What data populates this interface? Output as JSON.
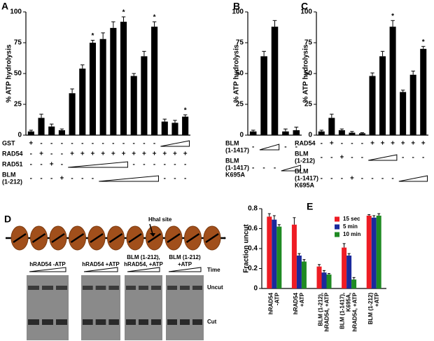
{
  "chart_data": [
    {
      "type": "bar",
      "panel": "A",
      "ylabel": "% ATP hydrolysis",
      "color": "#000000",
      "ylim": [
        0,
        100
      ],
      "yticks": [
        0,
        25,
        50,
        75,
        100
      ],
      "values": [
        3,
        14,
        7,
        4,
        34,
        54,
        75,
        78,
        87,
        92,
        48,
        64,
        88,
        11,
        10,
        15
      ],
      "errors": [
        1,
        3,
        2,
        1,
        3.5,
        3,
        2,
        5,
        5,
        4,
        2,
        4,
        4,
        2,
        2,
        1.5
      ],
      "significance": [
        null,
        null,
        null,
        null,
        null,
        null,
        "*",
        null,
        null,
        "*",
        null,
        null,
        "*",
        null,
        null,
        "*"
      ],
      "conditions": [
        {
          "label": [
            "GST"
          ],
          "signs": [
            "+",
            "-",
            "-",
            "-",
            "-",
            "-",
            "-",
            "-",
            "-",
            "-",
            "-",
            "-",
            "-",
            null,
            null,
            null
          ]
        },
        {
          "label": [
            "RAD54"
          ],
          "signs": [
            "-",
            "+",
            "-",
            "-",
            "+",
            "+",
            "+",
            "+",
            "+",
            "+",
            "+",
            "+",
            "+",
            "+",
            "+",
            "+"
          ]
        },
        {
          "label": [
            "RAD51"
          ],
          "signs": [
            "-",
            "-",
            "+",
            "-",
            null,
            null,
            null,
            null,
            null,
            null,
            "-",
            "-",
            "-",
            "-",
            "-",
            "-"
          ]
        },
        {
          "label": [
            "BLM",
            "(1-212)"
          ],
          "signs": [
            "-",
            "-",
            "-",
            "+",
            "-",
            "-",
            "-",
            null,
            null,
            null,
            null,
            null,
            null,
            "-",
            "-",
            "-"
          ]
        }
      ]
    },
    {
      "type": "bar",
      "panel": "B",
      "ylabel": "% ATP hydrolysis",
      "color": "#000000",
      "ylim": [
        0,
        100
      ],
      "yticks": [
        0,
        25,
        50,
        75,
        100
      ],
      "values": [
        3,
        64,
        88,
        3,
        4
      ],
      "errors": [
        1,
        4,
        5,
        2,
        2.5
      ],
      "conditions": [
        {
          "label": [
            "BLM",
            "(1-1417)"
          ],
          "signs": [
            "-",
            null,
            null,
            "-",
            "-"
          ]
        },
        {
          "label": [
            "BLM",
            "(1-1417)",
            "K695A"
          ],
          "signs": [
            "-",
            "-",
            "-",
            null,
            null
          ]
        }
      ]
    },
    {
      "type": "bar",
      "panel": "C",
      "ylabel": "% ATP hydrolysis",
      "color": "#000000",
      "ylim": [
        0,
        100
      ],
      "yticks": [
        0,
        25,
        50,
        75,
        100
      ],
      "values": [
        3,
        14,
        4,
        2,
        1.5,
        48,
        64,
        88,
        35,
        49,
        70
      ],
      "errors": [
        1,
        3,
        1,
        1,
        0.5,
        2.5,
        4,
        5,
        1.5,
        3,
        2
      ],
      "significance": [
        null,
        null,
        null,
        null,
        null,
        null,
        null,
        "*",
        null,
        null,
        "*"
      ],
      "conditions": [
        {
          "label": [
            "RAD54"
          ],
          "signs": [
            "-",
            "+",
            "-",
            "-",
            "-",
            "+",
            "+",
            "+",
            "+",
            "+",
            "+"
          ]
        },
        {
          "label": [
            "BLM",
            "(1-212)"
          ],
          "signs": [
            "-",
            "-",
            "+",
            "-",
            "-",
            null,
            null,
            null,
            "-",
            "-",
            "-"
          ]
        },
        {
          "label": [
            "BLM",
            "(1-1417)",
            "K695A"
          ],
          "signs": [
            "-",
            "-",
            "-",
            "+",
            "-",
            "-",
            "-",
            "-",
            null,
            null,
            null
          ]
        }
      ]
    },
    {
      "type": "gel",
      "panel": "D",
      "site_label": "HhaI site",
      "time_label": "Time",
      "lanes": [
        {
          "label": [
            "hRAD54 -ATP"
          ]
        },
        {
          "label": [
            "hRAD54 +ATP"
          ]
        },
        {
          "label": [
            "BLM (1-212),",
            "hRAD54, +ATP"
          ]
        },
        {
          "label": [
            "BLM (1-212)",
            "+ATP"
          ]
        }
      ],
      "band_labels": [
        "Uncut",
        "Cut"
      ]
    },
    {
      "type": "grouped_bar",
      "panel": "E",
      "ylabel": "Fraction uncut",
      "ylim": [
        0,
        0.8
      ],
      "yticks": [
        0,
        0.2,
        0.4,
        0.6,
        0.8
      ],
      "categories": [
        [
          "hRAD54",
          "-ATP"
        ],
        [
          "hRAD54",
          "+ATP"
        ],
        [
          "BLM (1-212),",
          "hRAD54, +ATP"
        ],
        [
          "BLM (1-1417),",
          "K695A,",
          "hRAD54, +ATP"
        ],
        [
          "BLM (1-212)",
          "+ATP"
        ]
      ],
      "series": [
        {
          "name": "15 sec",
          "color": "#ee1c24",
          "values": [
            0.72,
            0.64,
            0.22,
            0.41,
            0.73
          ],
          "errors": [
            0.03,
            0.07,
            0.02,
            0.04,
            0.01
          ]
        },
        {
          "name": "5 min",
          "color": "#1a2a9c",
          "values": [
            0.69,
            0.33,
            0.16,
            0.33,
            0.71
          ],
          "errors": [
            0.04,
            0.02,
            0.02,
            0.02,
            0.02
          ]
        },
        {
          "name": "10 min",
          "color": "#1f8a23",
          "values": [
            0.62,
            0.27,
            0.14,
            0.09,
            0.73
          ],
          "errors": [
            0.02,
            0.02,
            0.01,
            0.02,
            0.02
          ]
        }
      ]
    }
  ]
}
